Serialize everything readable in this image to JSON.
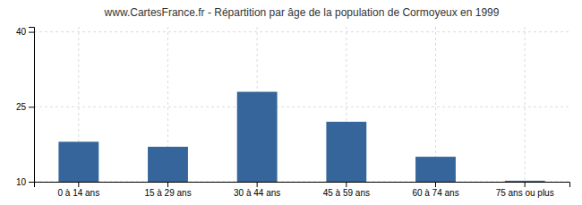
{
  "chart_data": {
    "type": "bar",
    "title": "www.CartesFrance.fr - Répartition par âge de la population de Cormoyeux en 1999",
    "categories": [
      "0 à 14 ans",
      "15 à 29 ans",
      "30 à 44 ans",
      "45 à 59 ans",
      "60 à 74 ans",
      "75 ans ou plus"
    ],
    "values": [
      18,
      17,
      28,
      22,
      15,
      10.2
    ],
    "color": "#35659a",
    "ylim": [
      10,
      41
    ],
    "yticks": [
      10,
      25,
      40
    ],
    "grid": true
  }
}
